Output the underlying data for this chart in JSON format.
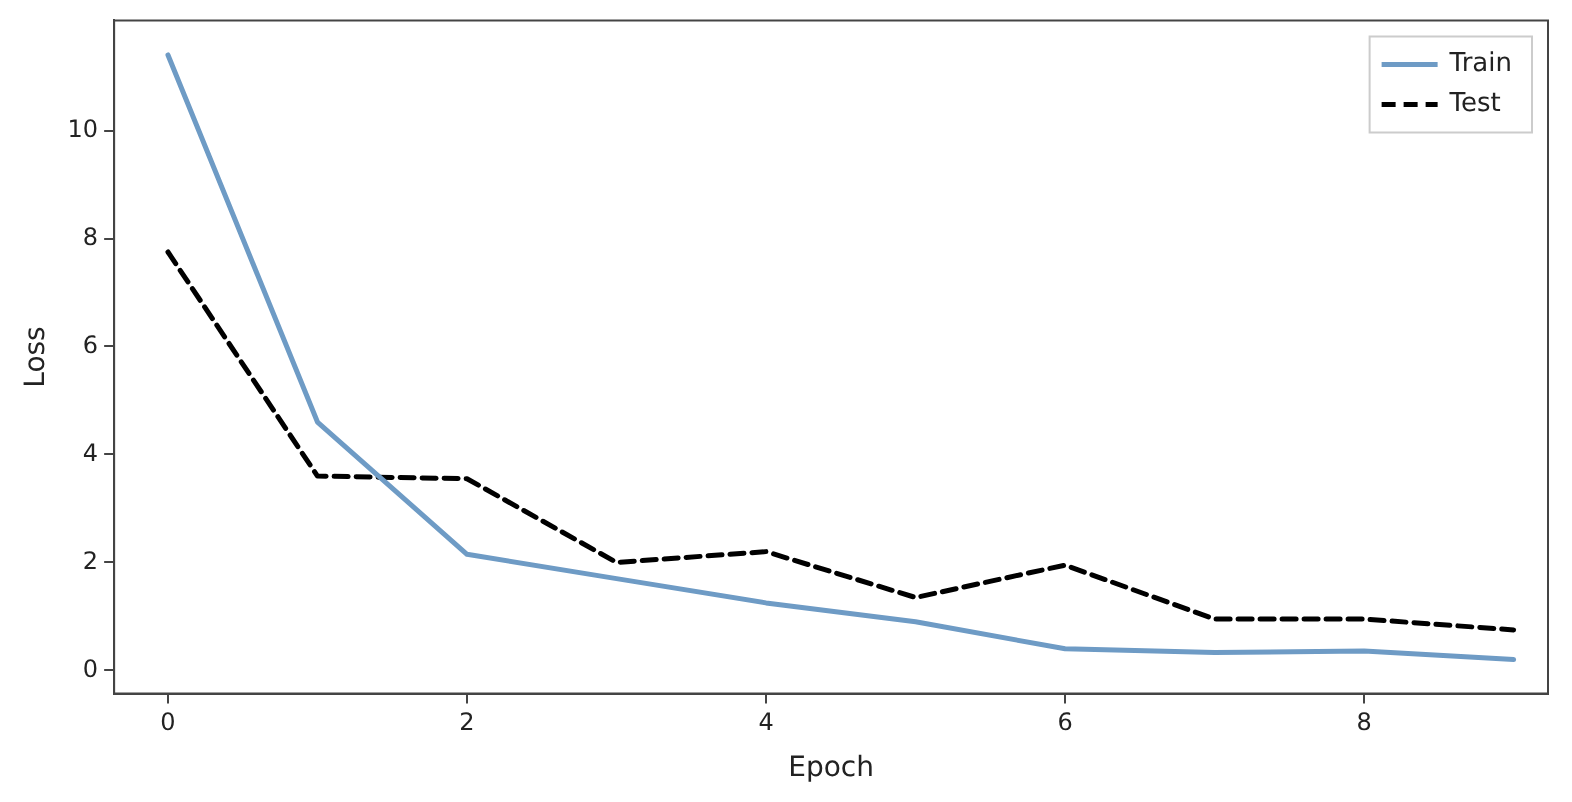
{
  "chart_data": {
    "type": "line",
    "xlabel": "Epoch",
    "ylabel": "Loss",
    "x": [
      0,
      1,
      2,
      3,
      4,
      5,
      6,
      7,
      8,
      9
    ],
    "series": [
      {
        "name": "Train",
        "color": "#6e9bc5",
        "line_style": "solid",
        "values": [
          11.4,
          4.6,
          2.15,
          1.7,
          1.25,
          0.9,
          0.4,
          0.33,
          0.36,
          0.2
        ]
      },
      {
        "name": "Test",
        "color": "#000000",
        "line_style": "dashed",
        "values": [
          7.75,
          3.6,
          3.55,
          2.0,
          2.2,
          1.35,
          1.95,
          0.95,
          0.95,
          0.75
        ]
      }
    ],
    "xlim": [
      -0.36,
      9.23
    ],
    "xticks": [
      0,
      2,
      4,
      6,
      8
    ],
    "ylim": [
      -0.43,
      12.04
    ],
    "yticks": [
      0,
      2,
      4,
      6,
      8,
      10
    ],
    "grid": false,
    "legend": "top right",
    "marker": "none"
  }
}
